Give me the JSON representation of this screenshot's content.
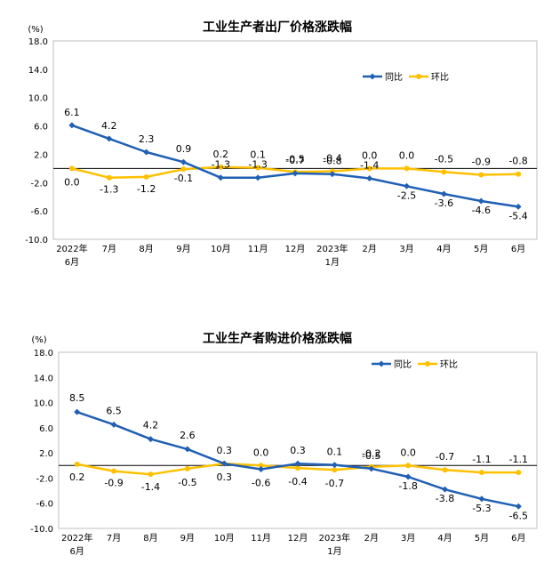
{
  "chart_data": [
    {
      "type": "line",
      "title": "工业生产者出厂价格涨跌幅",
      "ylabel": "(%)",
      "ylim": [
        -10.0,
        18.0
      ],
      "y_ticks": [
        "18.0",
        "14.0",
        "10.0",
        "6.0",
        "2.0",
        "-2.0",
        "-6.0",
        "-10.0"
      ],
      "categories": [
        [
          "2022年",
          "6月"
        ],
        [
          "7月"
        ],
        [
          "8月"
        ],
        [
          "9月"
        ],
        [
          "10月"
        ],
        [
          "11月"
        ],
        [
          "12月"
        ],
        [
          "2023年",
          "1月"
        ],
        [
          "2月"
        ],
        [
          "3月"
        ],
        [
          "4月"
        ],
        [
          "5月"
        ],
        [
          "6月"
        ]
      ],
      "series": [
        {
          "name": "同比",
          "color": "#1f5fb4",
          "values": [
            6.1,
            4.2,
            2.3,
            0.9,
            -1.3,
            -1.3,
            -0.7,
            -0.8,
            -1.4,
            -2.5,
            -3.6,
            -4.6,
            -5.4
          ],
          "labels": [
            "6.1",
            "4.2",
            "2.3",
            "0.9",
            "-1.3",
            "-1.3",
            "-0.7",
            "-0.8",
            "-1.4",
            "-2.5",
            "-3.6",
            "-4.6",
            "-5.4"
          ]
        },
        {
          "name": "环比",
          "color": "#ffc000",
          "values": [
            0.0,
            -1.3,
            -1.2,
            -0.1,
            0.2,
            0.1,
            -0.5,
            -0.4,
            0.0,
            0.0,
            -0.5,
            -0.9,
            -0.8
          ],
          "labels": [
            "0.0",
            "-1.3",
            "-1.2",
            "-0.1",
            "0.2",
            "0.1",
            "-0.5",
            "-0.4",
            "0.0",
            "0.0",
            "-0.5",
            "-0.9",
            "-0.8"
          ]
        }
      ],
      "legend": "top-right"
    },
    {
      "type": "line",
      "title": "工业生产者购进价格涨跌幅",
      "ylabel": "(%)",
      "ylim": [
        -10.0,
        18.0
      ],
      "y_ticks": [
        "18.0",
        "14.0",
        "10.0",
        "6.0",
        "2.0",
        "-2.0",
        "-6.0",
        "-10.0"
      ],
      "categories": [
        [
          "2022年",
          "6月"
        ],
        [
          "7月"
        ],
        [
          "8月"
        ],
        [
          "9月"
        ],
        [
          "10月"
        ],
        [
          "11月"
        ],
        [
          "12月"
        ],
        [
          "2023年",
          "1月"
        ],
        [
          "2月"
        ],
        [
          "3月"
        ],
        [
          "4月"
        ],
        [
          "5月"
        ],
        [
          "6月"
        ]
      ],
      "series": [
        {
          "name": "同比",
          "color": "#1f5fb4",
          "values": [
            8.5,
            6.5,
            4.2,
            2.6,
            0.3,
            -0.6,
            0.3,
            0.1,
            -0.5,
            -1.8,
            -3.8,
            -5.3,
            -6.5
          ],
          "labels": [
            "8.5",
            "6.5",
            "4.2",
            "2.6",
            "0.3",
            "-0.6",
            "0.3",
            "0.1",
            "-0.5",
            "-1.8",
            "-3.8",
            "-5.3",
            "-6.5"
          ]
        },
        {
          "name": "环比",
          "color": "#ffc000",
          "values": [
            0.2,
            -0.9,
            -1.4,
            -0.5,
            0.3,
            0.0,
            -0.4,
            -0.7,
            -0.2,
            0.0,
            -0.7,
            -1.1,
            -1.1
          ],
          "labels": [
            "0.2",
            "-0.9",
            "-1.4",
            "-0.5",
            "0.3",
            "0.0",
            "-0.4",
            "-0.7",
            "-0.2",
            "0.0",
            "-0.7",
            "-1.1",
            "-1.1"
          ]
        }
      ],
      "legend": "top-right"
    }
  ]
}
